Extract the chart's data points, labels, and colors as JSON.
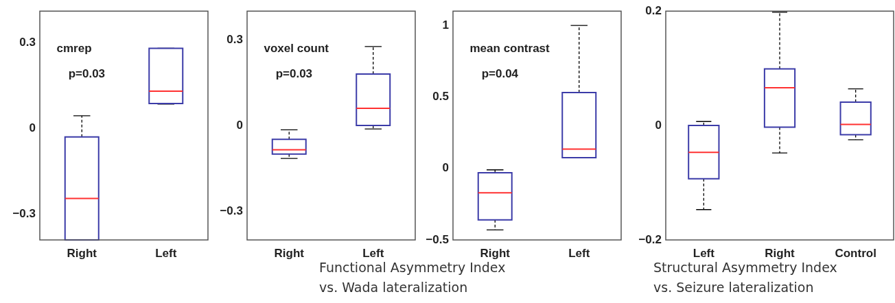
{
  "chart_data": [
    {
      "type": "box",
      "categories": [
        "Right",
        "Left"
      ],
      "ylim": [
        -0.39,
        0.41
      ],
      "yticks": [
        -0.3,
        0,
        0.3
      ],
      "annotations": [
        "cmrep",
        "p=0.03"
      ],
      "series": [
        {
          "color": "#3b3ba8",
          "boxes": [
            {
              "low": -0.39,
              "q1": -0.39,
              "median": -0.245,
              "q3": -0.03,
              "high": 0.044
            },
            {
              "low": 0.085,
              "q1": 0.087,
              "median": 0.13,
              "q3": 0.28,
              "high": 0.28
            }
          ]
        }
      ]
    },
    {
      "type": "box",
      "categories": [
        "Right",
        "Left"
      ],
      "ylim": [
        -0.4,
        0.4
      ],
      "yticks": [
        -0.3,
        0,
        0.3
      ],
      "annotations": [
        "voxel count",
        "p=0.03"
      ],
      "xlabel": "Functional Asymmetry Index\nvs. Wada lateralization",
      "series": [
        {
          "color": "#3b3ba8",
          "boxes": [
            {
              "low": -0.115,
              "q1": -0.1,
              "median": -0.085,
              "q3": -0.048,
              "high": -0.015
            },
            {
              "low": -0.012,
              "q1": 0,
              "median": 0.06,
              "q3": 0.18,
              "high": 0.276
            }
          ]
        }
      ]
    },
    {
      "type": "box",
      "categories": [
        "Right",
        "Left"
      ],
      "ylim": [
        -0.5,
        1.1
      ],
      "yticks": [
        -0.5,
        0,
        0.5,
        1
      ],
      "annotations": [
        "mean contrast",
        "p=0.04"
      ],
      "series": [
        {
          "color": "#3b3ba8",
          "boxes": [
            {
              "low": -0.43,
              "q1": -0.36,
              "median": -0.17,
              "q3": -0.03,
              "high": -0.01
            },
            {
              "low": 0.075,
              "q1": 0.075,
              "median": 0.135,
              "q3": 0.53,
              "high": 1.0
            }
          ]
        }
      ]
    },
    {
      "type": "box",
      "categories": [
        "Left",
        "Right",
        "Control"
      ],
      "ylim": [
        -0.2,
        0.2
      ],
      "yticks": [
        -0.2,
        0,
        0.2
      ],
      "xlabel": "Structural Asymmetry Index\nvs. Seizure lateralization",
      "series": [
        {
          "color": "#3b3ba8",
          "boxes": [
            {
              "low": -0.147,
              "q1": -0.093,
              "median": -0.047,
              "q3": 0,
              "high": 0.007
            },
            {
              "low": -0.048,
              "q1": -0.003,
              "median": 0.066,
              "q3": 0.099,
              "high": 0.198
            },
            {
              "low": -0.025,
              "q1": -0.016,
              "median": 0.002,
              "q3": 0.041,
              "high": 0.064
            }
          ]
        }
      ]
    }
  ]
}
